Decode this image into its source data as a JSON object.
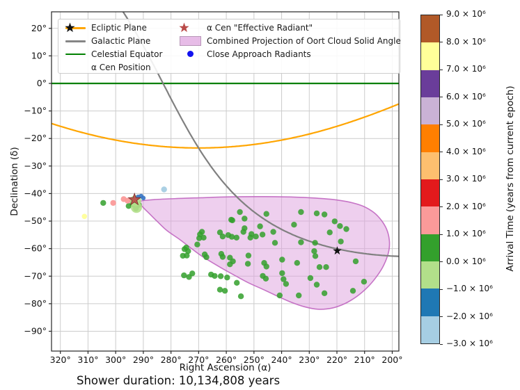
{
  "annotation": "Shower duration: 10,134,808 years",
  "chart_data": {
    "type": "scatter",
    "title": "",
    "xlabel": "Right Ascension (α)",
    "ylabel": "Declination (δ)",
    "x_inverted": true,
    "xlim": [
      323.2,
      197.6
    ],
    "ylim": [
      -97.2,
      26.0
    ],
    "grid": true,
    "x_tick_values": [
      320,
      310,
      300,
      290,
      280,
      270,
      260,
      250,
      240,
      230,
      220,
      210,
      200
    ],
    "x_tick_labels": [
      "320°",
      "310°",
      "300°",
      "290°",
      "280°",
      "270°",
      "260°",
      "250°",
      "240°",
      "230°",
      "220°",
      "210°",
      "200°"
    ],
    "y_tick_values": [
      20,
      10,
      0,
      -10,
      -20,
      -30,
      -40,
      -50,
      -60,
      -70,
      -80,
      -90
    ],
    "y_tick_labels": [
      "20°",
      "10°",
      "0°",
      "−10°",
      "−20°",
      "−30°",
      "−40°",
      "−50°",
      "−60°",
      "−70°",
      "−80°",
      "−90°"
    ],
    "reference_curves": {
      "ecliptic_plane": {
        "label": "Ecliptic Plane",
        "color": "#ffa500",
        "obliquity_deg": 23.44
      },
      "galactic_plane": {
        "label": "Galactic Plane",
        "color": "#808080",
        "ngp_ra_deg": 192.86,
        "ngp_dec_deg": 27.13
      },
      "celestial_equator": {
        "label": "Celestial Equator",
        "color": "#008000",
        "dec": 0
      }
    },
    "alpha_cen_position": {
      "ra": 219.9,
      "dec": -60.8,
      "color": "#111111"
    },
    "effective_radiant": {
      "ra": 293.2,
      "dec": -42.2,
      "color": "#b94a48",
      "edge": "#7c2f2d"
    },
    "close_approach_radiants": {
      "color": "#3a76c4",
      "r": 3.3,
      "points": [
        [
          290.8,
          -40.9
        ],
        [
          290.0,
          -41.6
        ],
        [
          291.9,
          -41.2
        ]
      ]
    },
    "oort_cloud_projection": {
      "fill": "#dda0dd",
      "fill_opacity": 0.5,
      "edge": "#bd5fbd",
      "outline_ra_dec": [
        [
          291.5,
          -42.9
        ],
        [
          286,
          -42.2
        ],
        [
          278,
          -41.8
        ],
        [
          269,
          -41.5
        ],
        [
          259,
          -41.2
        ],
        [
          249,
          -41.1
        ],
        [
          239,
          -41.2
        ],
        [
          230,
          -41.5
        ],
        [
          222,
          -42.1
        ],
        [
          215.5,
          -43.1
        ],
        [
          210.5,
          -44.6
        ],
        [
          206.6,
          -46.9
        ],
        [
          203.8,
          -49.9
        ],
        [
          202.0,
          -53.0
        ],
        [
          201.1,
          -56.5
        ],
        [
          201.1,
          -60.0
        ],
        [
          202.0,
          -63.5
        ],
        [
          203.6,
          -67.0
        ],
        [
          205.9,
          -70.5
        ],
        [
          208.9,
          -74.0
        ],
        [
          212.6,
          -77.2
        ],
        [
          217.0,
          -79.9
        ],
        [
          221.8,
          -81.6
        ],
        [
          226.9,
          -82.0
        ],
        [
          231.8,
          -81.1
        ],
        [
          236.5,
          -79.5
        ],
        [
          241.2,
          -77.4
        ],
        [
          246.5,
          -74.9
        ],
        [
          252.0,
          -72.4
        ],
        [
          257.0,
          -69.7
        ],
        [
          261.3,
          -67.3
        ],
        [
          265.5,
          -64.8
        ],
        [
          268.9,
          -62.7
        ],
        [
          272.3,
          -60.2
        ],
        [
          276.8,
          -56.7
        ],
        [
          281.4,
          -53.5
        ],
        [
          284.8,
          -50.3
        ],
        [
          287.8,
          -47.3
        ],
        [
          290.2,
          -44.9
        ]
      ]
    },
    "radiants_by_arrival_time": [
      {
        "bin": "0.0 to 1.0 × 10⁶ yr",
        "color": "#33a02c",
        "r": 4.2,
        "opacity": 0.85,
        "points": [
          [
            255.1,
            -46.7
          ],
          [
            245.5,
            -47.4
          ],
          [
            233.0,
            -46.7
          ],
          [
            227.3,
            -47.2
          ],
          [
            224.5,
            -47.6
          ],
          [
            258.2,
            -49.5
          ],
          [
            253.4,
            -49.1
          ],
          [
            257.8,
            -49.7
          ],
          [
            247.8,
            -51.9
          ],
          [
            235.5,
            -51.3
          ],
          [
            220.8,
            -50.1
          ],
          [
            218.9,
            -51.8
          ],
          [
            216.6,
            -52.9
          ],
          [
            253.4,
            -52.6
          ],
          [
            222.6,
            -54.1
          ],
          [
            268.8,
            -53.9
          ],
          [
            269.5,
            -54.8
          ],
          [
            269.8,
            -56.2
          ],
          [
            268.2,
            -56.0
          ],
          [
            262.3,
            -54.1
          ],
          [
            261.3,
            -55.6
          ],
          [
            259.3,
            -55.1
          ],
          [
            258.0,
            -55.7
          ],
          [
            256.3,
            -56.0
          ],
          [
            253.8,
            -53.9
          ],
          [
            250.9,
            -54.7
          ],
          [
            251.3,
            -56.0
          ],
          [
            249.3,
            -55.6
          ],
          [
            246.9,
            -54.9
          ],
          [
            243.0,
            -53.9
          ],
          [
            242.4,
            -57.9
          ],
          [
            233.0,
            -57.7
          ],
          [
            227.9,
            -57.9
          ],
          [
            228.2,
            -60.9
          ],
          [
            227.8,
            -62.7
          ],
          [
            218.6,
            -57.4
          ],
          [
            270.5,
            -58.5
          ],
          [
            274.5,
            -59.6
          ],
          [
            273.8,
            -60.9
          ],
          [
            275.1,
            -60.2
          ],
          [
            275.7,
            -62.6
          ],
          [
            274.3,
            -62.5
          ],
          [
            267.8,
            -62.1
          ],
          [
            267.2,
            -63.1
          ],
          [
            261.8,
            -61.9
          ],
          [
            261.3,
            -63.0
          ],
          [
            258.7,
            -63.3
          ],
          [
            257.6,
            -64.6
          ],
          [
            258.7,
            -65.7
          ],
          [
            252.0,
            -62.5
          ],
          [
            252.2,
            -65.5
          ],
          [
            246.3,
            -65.2
          ],
          [
            245.5,
            -66.5
          ],
          [
            239.8,
            -64.0
          ],
          [
            234.4,
            -65.2
          ],
          [
            226.3,
            -66.7
          ],
          [
            223.9,
            -66.7
          ],
          [
            213.2,
            -64.6
          ],
          [
            275.3,
            -69.7
          ],
          [
            273.5,
            -70.3
          ],
          [
            272.3,
            -69.0
          ],
          [
            265.5,
            -69.4
          ],
          [
            264.2,
            -69.9
          ],
          [
            262.0,
            -70.0
          ],
          [
            259.7,
            -70.5
          ],
          [
            256.2,
            -72.4
          ],
          [
            246.8,
            -69.9
          ],
          [
            245.7,
            -70.9
          ],
          [
            239.8,
            -68.9
          ],
          [
            239.3,
            -71.1
          ],
          [
            238.4,
            -72.8
          ],
          [
            229.6,
            -70.7
          ],
          [
            227.3,
            -73.1
          ],
          [
            224.5,
            -76.2
          ],
          [
            214.2,
            -75.3
          ],
          [
            210.2,
            -72.0
          ],
          [
            262.3,
            -74.9
          ],
          [
            260.5,
            -75.3
          ],
          [
            254.7,
            -77.3
          ],
          [
            240.7,
            -77.0
          ],
          [
            233.8,
            -77.0
          ],
          [
            293.9,
            -43.9
          ],
          [
            291.6,
            -44.1
          ],
          [
            292.7,
            -45.4
          ],
          [
            295.3,
            -44.5
          ],
          [
            294.0,
            -42.6
          ],
          [
            304.5,
            -43.4
          ]
        ]
      },
      {
        "bin": "−1.0 to 0.0 × 10⁶ yr",
        "color": "#b2df8a",
        "r": 8,
        "opacity": 0.9,
        "points": [
          [
            292.8,
            -42.6
          ],
          [
            292.5,
            -45.0
          ]
        ]
      },
      {
        "bin": "1.0 to 2.0 × 10⁶ yr",
        "color": "#fb9a99",
        "r": 4.2,
        "opacity": 0.95,
        "points": [
          [
            297.1,
            -42.0
          ],
          [
            295.7,
            -42.6
          ],
          [
            300.9,
            -43.4
          ]
        ]
      },
      {
        "bin": "7.0 to 8.0 × 10⁶ yr",
        "color": "#ffff99",
        "r": 3.8,
        "opacity": 0.95,
        "points": [
          [
            311.3,
            -48.3
          ]
        ]
      },
      {
        "bin": "−3.0 to −2.0 × 10⁶ yr",
        "color": "#a6cee3",
        "r": 4.2,
        "opacity": 0.95,
        "points": [
          [
            282.5,
            -38.5
          ]
        ]
      }
    ]
  },
  "legend": {
    "items": [
      {
        "label": "Ecliptic Plane",
        "marker": "line",
        "color": "#ffa500",
        "column": 1
      },
      {
        "label": "Galactic Plane",
        "marker": "line",
        "color": "#858585",
        "column": 1
      },
      {
        "label": "Celestial Equator",
        "marker": "line",
        "color": "#008000",
        "column": 1
      },
      {
        "label": "α Cen Position",
        "marker": "star",
        "color": "#111111",
        "column": 1
      },
      {
        "label": "α Cen \"Effective Radiant\"",
        "marker": "star",
        "color": "#b94a48",
        "column": 2
      },
      {
        "label": "Combined Projection of Oort Cloud Solid Angle",
        "marker": "patch",
        "color": "#dda0dd",
        "edge": "#9a6a9a",
        "column": 2
      },
      {
        "label": "Close Approach Radiants",
        "marker": "dot",
        "color": "#1212ef",
        "column": 2
      }
    ]
  },
  "colorbar": {
    "label": "Arrival Time (years from current epoch)",
    "tick_labels": [
      "9.0 × 10⁶",
      "8.0 × 10⁶",
      "7.0 × 10⁶",
      "6.0 × 10⁶",
      "5.0 × 10⁶",
      "4.0 × 10⁶",
      "3.0 × 10⁶",
      "2.0 × 10⁶",
      "1.0 × 10⁶",
      "0.0 × 10⁶",
      "−1.0 × 10⁶",
      "−2.0 × 10⁶",
      "−3.0 × 10⁶"
    ],
    "segment_colors_top_to_bottom": [
      "#b15928",
      "#ffff99",
      "#6a3d9a",
      "#cab2d6",
      "#ff7f00",
      "#fdbf6f",
      "#e31a1c",
      "#fb9a99",
      "#33a02c",
      "#b2df8a",
      "#1f78b4",
      "#a6cee3"
    ]
  }
}
